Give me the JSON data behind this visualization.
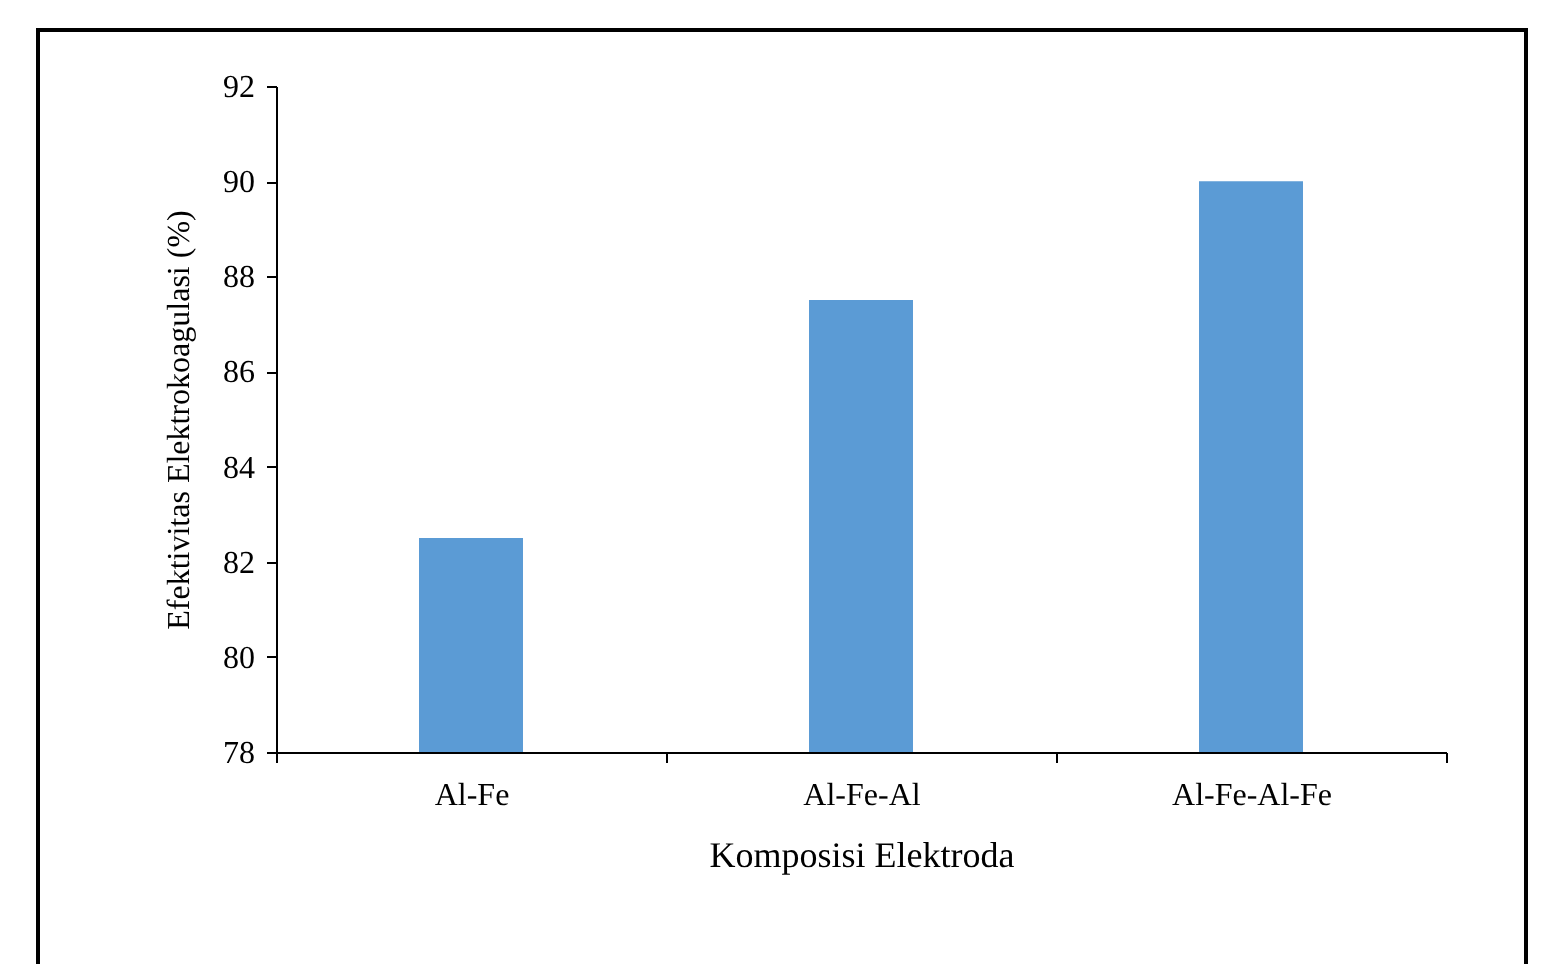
{
  "chart_data": {
    "type": "bar",
    "xlabel": "Komposisi Elektroda",
    "ylabel": "Efektivitas  Elektrokoagulasi  (%)",
    "categories": [
      "Al-Fe",
      "Al-Fe-Al",
      "Al-Fe-Al-Fe"
    ],
    "values": [
      82.5,
      87.5,
      90
    ],
    "color": "#5b9bd5",
    "ylim": [
      78,
      92
    ],
    "yticks": [
      78,
      80,
      82,
      84,
      86,
      88,
      90,
      92
    ],
    "grid": false
  }
}
